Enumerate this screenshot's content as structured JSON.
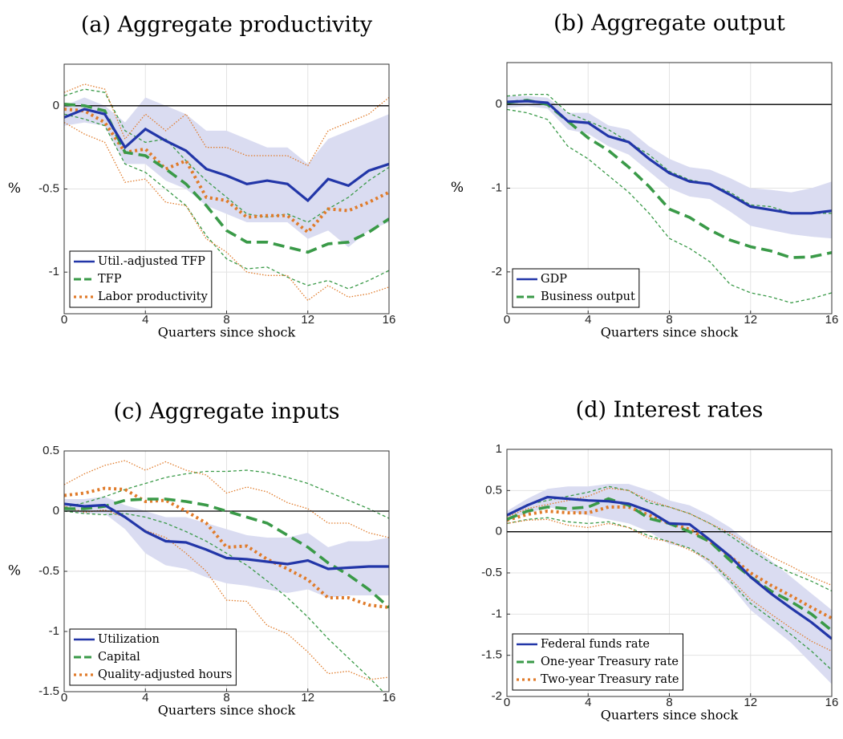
{
  "chart_data": [
    {
      "type": "line",
      "title": "(a) Aggregate productivity",
      "xlabel": "Quarters since shock",
      "ylabel": "%",
      "x": [
        0,
        1,
        2,
        3,
        4,
        5,
        6,
        7,
        8,
        9,
        10,
        11,
        12,
        13,
        14,
        15,
        16
      ],
      "xlim": [
        0,
        16
      ],
      "xticks": [
        0,
        4,
        8,
        12,
        16
      ],
      "ylim": [
        -1.25,
        0.25
      ],
      "yticks": [
        -1,
        -0.5,
        0
      ],
      "grid": true,
      "legend": "lower left",
      "series": [
        {
          "name": "Util.-adjusted TFP",
          "color": "#2236a8",
          "style": "solid",
          "ci": "shaded",
          "values": [
            -0.07,
            -0.02,
            -0.05,
            -0.25,
            -0.14,
            -0.21,
            -0.27,
            -0.38,
            -0.42,
            -0.47,
            -0.45,
            -0.47,
            -0.57,
            -0.44,
            -0.48,
            -0.39,
            -0.35
          ],
          "lower": [
            -0.12,
            -0.1,
            -0.12,
            -0.35,
            -0.35,
            -0.45,
            -0.5,
            -0.6,
            -0.65,
            -0.7,
            -0.7,
            -0.7,
            -0.8,
            -0.75,
            -0.85,
            -0.75,
            -0.7
          ],
          "upper": [
            0,
            0.05,
            0,
            -0.1,
            0.05,
            0,
            -0.05,
            -0.15,
            -0.15,
            -0.2,
            -0.25,
            -0.25,
            -0.35,
            -0.2,
            -0.15,
            -0.1,
            -0.05
          ]
        },
        {
          "name": "TFP",
          "color": "#3a9a48",
          "style": "dashed",
          "ci": "lines",
          "values": [
            0.01,
            0,
            -0.03,
            -0.28,
            -0.3,
            -0.38,
            -0.47,
            -0.6,
            -0.75,
            -0.82,
            -0.82,
            -0.85,
            -0.88,
            -0.83,
            -0.82,
            -0.76,
            -0.68
          ],
          "lower": [
            -0.05,
            -0.08,
            -0.12,
            -0.35,
            -0.4,
            -0.5,
            -0.6,
            -0.78,
            -0.92,
            -0.98,
            -0.97,
            -1.03,
            -1.08,
            -1.05,
            -1.1,
            -1.05,
            -0.99
          ],
          "upper": [
            0.06,
            0.1,
            0.08,
            -0.15,
            -0.22,
            -0.2,
            -0.33,
            -0.45,
            -0.55,
            -0.65,
            -0.67,
            -0.65,
            -0.7,
            -0.62,
            -0.55,
            -0.45,
            -0.37
          ]
        },
        {
          "name": "Labor productivity",
          "color": "#e07b2a",
          "style": "dotted",
          "ci": "lines",
          "values": [
            -0.02,
            -0.03,
            -0.1,
            -0.28,
            -0.26,
            -0.38,
            -0.33,
            -0.55,
            -0.57,
            -0.67,
            -0.66,
            -0.66,
            -0.76,
            -0.62,
            -0.63,
            -0.58,
            -0.52
          ],
          "lower": [
            -0.1,
            -0.17,
            -0.22,
            -0.46,
            -0.44,
            -0.58,
            -0.6,
            -0.8,
            -0.88,
            -1,
            -1.02,
            -1.02,
            -1.17,
            -1.08,
            -1.15,
            -1.13,
            -1.09
          ],
          "upper": [
            0.08,
            0.13,
            0.1,
            -0.2,
            -0.05,
            -0.15,
            -0.05,
            -0.25,
            -0.25,
            -0.3,
            -0.3,
            -0.3,
            -0.36,
            -0.15,
            -0.1,
            -0.05,
            0.05
          ]
        }
      ]
    },
    {
      "type": "line",
      "title": "(b) Aggregate output",
      "xlabel": "Quarters since shock",
      "ylabel": "%",
      "x": [
        0,
        1,
        2,
        3,
        4,
        5,
        6,
        7,
        8,
        9,
        10,
        11,
        12,
        13,
        14,
        15,
        16
      ],
      "xlim": [
        0,
        16
      ],
      "xticks": [
        0,
        4,
        8,
        12,
        16
      ],
      "ylim": [
        -2.5,
        0.5
      ],
      "yticks": [
        -2,
        -1,
        0
      ],
      "grid": true,
      "legend": "lower left",
      "series": [
        {
          "name": "GDP",
          "color": "#2236a8",
          "style": "solid",
          "ci": "shaded",
          "values": [
            0.03,
            0.04,
            0.02,
            -0.2,
            -0.22,
            -0.38,
            -0.45,
            -0.65,
            -0.82,
            -0.92,
            -0.95,
            -1.08,
            -1.22,
            -1.26,
            -1.3,
            -1.3,
            -1.27
          ],
          "lower": [
            -0.04,
            -0.02,
            -0.05,
            -0.3,
            -0.35,
            -0.5,
            -0.6,
            -0.8,
            -1,
            -1.1,
            -1.13,
            -1.28,
            -1.45,
            -1.5,
            -1.55,
            -1.58,
            -1.6
          ],
          "upper": [
            0.1,
            0.1,
            0.08,
            -0.1,
            -0.1,
            -0.25,
            -0.3,
            -0.5,
            -0.65,
            -0.75,
            -0.78,
            -0.88,
            -1,
            -1.02,
            -1.05,
            -1,
            -0.92
          ]
        },
        {
          "name": "Business output",
          "color": "#3a9a48",
          "style": "dashed",
          "ci": "lines",
          "values": [
            0.02,
            0.05,
            0,
            -0.2,
            -0.4,
            -0.55,
            -0.75,
            -0.98,
            -1.25,
            -1.35,
            -1.5,
            -1.62,
            -1.7,
            -1.75,
            -1.83,
            -1.82,
            -1.77
          ],
          "lower": [
            -0.06,
            -0.1,
            -0.18,
            -0.5,
            -0.65,
            -0.85,
            -1.05,
            -1.3,
            -1.6,
            -1.72,
            -1.88,
            -2.15,
            -2.25,
            -2.3,
            -2.37,
            -2.32,
            -2.25
          ],
          "upper": [
            0.1,
            0.12,
            0.12,
            -0.1,
            -0.2,
            -0.3,
            -0.45,
            -0.6,
            -0.8,
            -0.9,
            -0.95,
            -1.05,
            -1.2,
            -1.22,
            -1.3,
            -1.3,
            -1.3
          ]
        }
      ]
    },
    {
      "type": "line",
      "title": "(c) Aggregate inputs",
      "xlabel": "Quarters since shock",
      "ylabel": "%",
      "x": [
        0,
        1,
        2,
        3,
        4,
        5,
        6,
        7,
        8,
        9,
        10,
        11,
        12,
        13,
        14,
        15,
        16
      ],
      "xlim": [
        0,
        16
      ],
      "xticks": [
        0,
        4,
        8,
        12,
        16
      ],
      "ylim": [
        -1.5,
        0.5
      ],
      "yticks": [
        -1.5,
        -1,
        -0.5,
        0,
        0.5
      ],
      "grid": true,
      "legend": "lower left",
      "series": [
        {
          "name": "Utilization",
          "color": "#2236a8",
          "style": "solid",
          "ci": "shaded",
          "values": [
            0.06,
            0.04,
            0.05,
            -0.05,
            -0.17,
            -0.25,
            -0.26,
            -0.32,
            -0.39,
            -0.4,
            -0.42,
            -0.44,
            -0.41,
            -0.48,
            -0.47,
            -0.46,
            -0.46
          ],
          "lower": [
            0,
            -0.02,
            -0.02,
            -0.15,
            -0.35,
            -0.45,
            -0.48,
            -0.55,
            -0.6,
            -0.62,
            -0.65,
            -0.68,
            -0.65,
            -0.72,
            -0.7,
            -0.7,
            -0.7
          ],
          "upper": [
            0.1,
            0.1,
            0.12,
            0.05,
            0,
            -0.05,
            -0.05,
            -0.1,
            -0.15,
            -0.2,
            -0.22,
            -0.22,
            -0.18,
            -0.3,
            -0.25,
            -0.25,
            -0.22
          ]
        },
        {
          "name": "Capital",
          "color": "#3a9a48",
          "style": "dashed",
          "ci": "lines",
          "values": [
            0.02,
            0.02,
            0.04,
            0.09,
            0.1,
            0.1,
            0.08,
            0.05,
            0,
            -0.05,
            -0.1,
            -0.2,
            -0.3,
            -0.43,
            -0.53,
            -0.65,
            -0.8
          ],
          "lower": [
            0,
            -0.02,
            -0.03,
            -0.02,
            -0.05,
            -0.1,
            -0.17,
            -0.25,
            -0.35,
            -0.45,
            -0.58,
            -0.72,
            -0.88,
            -1.06,
            -1.22,
            -1.38,
            -1.55
          ],
          "upper": [
            0.03,
            0.07,
            0.12,
            0.18,
            0.23,
            0.28,
            0.31,
            0.33,
            0.33,
            0.34,
            0.32,
            0.28,
            0.23,
            0.16,
            0.09,
            0.02,
            -0.06
          ]
        },
        {
          "name": "Quality-adjusted hours",
          "color": "#e07b2a",
          "style": "dotted",
          "ci": "lines",
          "values": [
            0.13,
            0.15,
            0.19,
            0.18,
            0.08,
            0.09,
            0,
            -0.1,
            -0.3,
            -0.29,
            -0.4,
            -0.48,
            -0.57,
            -0.72,
            -0.72,
            -0.78,
            -0.8
          ],
          "lower": [
            0.04,
            -0.01,
            0.01,
            -0.05,
            -0.16,
            -0.22,
            -0.35,
            -0.5,
            -0.74,
            -0.75,
            -0.95,
            -1.02,
            -1.17,
            -1.35,
            -1.33,
            -1.4,
            -1.38
          ],
          "upper": [
            0.22,
            0.31,
            0.38,
            0.42,
            0.34,
            0.41,
            0.34,
            0.3,
            0.15,
            0.2,
            0.16,
            0.07,
            0.02,
            -0.1,
            -0.1,
            -0.18,
            -0.22
          ]
        }
      ]
    },
    {
      "type": "line",
      "title": "(d) Interest rates",
      "xlabel": "Quarters since shock",
      "x": [
        0,
        1,
        2,
        3,
        4,
        5,
        6,
        7,
        8,
        9,
        10,
        11,
        12,
        13,
        14,
        15,
        16
      ],
      "xlim": [
        0,
        16
      ],
      "xticks": [
        0,
        4,
        8,
        12,
        16
      ],
      "ylim": [
        -2,
        1
      ],
      "yticks": [
        -2,
        -1.5,
        -1,
        -0.5,
        0,
        0.5,
        1
      ],
      "grid": true,
      "legend": "lower left",
      "series": [
        {
          "name": "Federal funds rate",
          "color": "#2236a8",
          "style": "solid",
          "ci": "shaded",
          "values": [
            0.2,
            0.32,
            0.42,
            0.4,
            0.38,
            0.37,
            0.34,
            0.25,
            0.1,
            0.09,
            -0.1,
            -0.3,
            -0.55,
            -0.75,
            -0.93,
            -1.1,
            -1.3
          ],
          "lower": [
            0.15,
            0.22,
            0.3,
            0.25,
            0.2,
            0.15,
            0.1,
            0,
            -0.15,
            -0.2,
            -0.4,
            -0.65,
            -0.95,
            -1.15,
            -1.35,
            -1.6,
            -1.85
          ],
          "upper": [
            0.25,
            0.4,
            0.52,
            0.55,
            0.55,
            0.58,
            0.58,
            0.5,
            0.38,
            0.32,
            0.2,
            0.05,
            -0.15,
            -0.35,
            -0.55,
            -0.75,
            -0.95
          ]
        },
        {
          "name": "One-year Treasury rate",
          "color": "#3a9a48",
          "style": "dashed",
          "ci": "lines",
          "values": [
            0.15,
            0.25,
            0.3,
            0.28,
            0.3,
            0.4,
            0.32,
            0.16,
            0.1,
            0,
            -0.12,
            -0.35,
            -0.55,
            -0.72,
            -0.85,
            -1,
            -1.2
          ],
          "lower": [
            0.1,
            0.15,
            0.17,
            0.12,
            0.1,
            0.12,
            0.05,
            -0.05,
            -0.12,
            -0.2,
            -0.35,
            -0.6,
            -0.87,
            -1.05,
            -1.25,
            -1.45,
            -1.68
          ],
          "upper": [
            0.2,
            0.33,
            0.38,
            0.43,
            0.48,
            0.55,
            0.5,
            0.35,
            0.3,
            0.22,
            0.1,
            -0.05,
            -0.22,
            -0.38,
            -0.5,
            -0.6,
            -0.72
          ]
        },
        {
          "name": "Two-year Treasury rate",
          "color": "#e07b2a",
          "style": "dotted",
          "ci": "lines",
          "values": [
            0.14,
            0.21,
            0.25,
            0.23,
            0.23,
            0.3,
            0.3,
            0.2,
            0.1,
            0.03,
            -0.12,
            -0.3,
            -0.5,
            -0.65,
            -0.78,
            -0.92,
            -1.05
          ],
          "lower": [
            0.1,
            0.14,
            0.15,
            0.08,
            0.05,
            0.1,
            0.05,
            -0.08,
            -0.12,
            -0.22,
            -0.35,
            -0.57,
            -0.82,
            -1,
            -1.17,
            -1.33,
            -1.45
          ],
          "upper": [
            0.18,
            0.28,
            0.33,
            0.38,
            0.43,
            0.53,
            0.5,
            0.38,
            0.3,
            0.22,
            0.1,
            -0.02,
            -0.17,
            -0.3,
            -0.42,
            -0.55,
            -0.65
          ]
        }
      ]
    }
  ]
}
